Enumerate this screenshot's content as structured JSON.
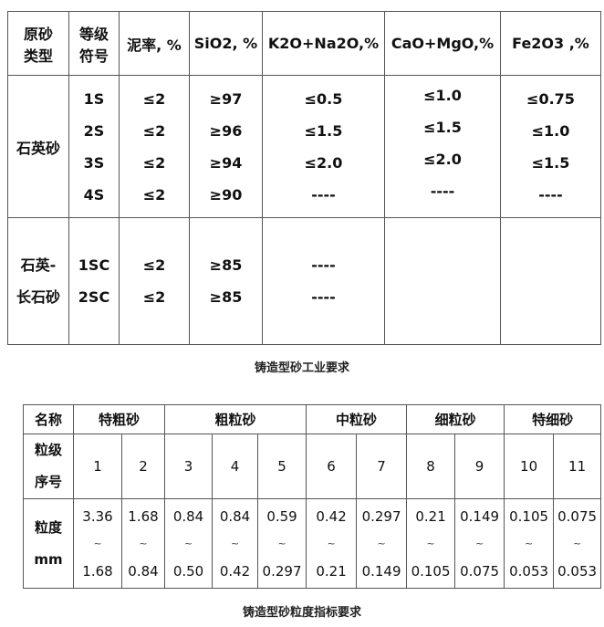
{
  "table1": {
    "headers": [
      "原砂\n类型",
      "等级\n符号",
      "泥率, %",
      "SiO2, %",
      "K2O+Na2O,%",
      "CaO+MgO,%",
      "Fe2O3 ,%"
    ],
    "h0a": "原砂",
    "h0b": "类型",
    "h1a": "等级",
    "h1b": "符号",
    "group1": {
      "type": "石英砂",
      "grades": [
        "1S",
        "2S",
        "3S",
        "4S"
      ],
      "mud": [
        "≤2",
        "≤2",
        "≤2",
        "≤2"
      ],
      "sio2": [
        "≥97",
        "≥96",
        "≥94",
        "≥90"
      ],
      "k2o": [
        "≤0.5",
        "≤1.5",
        "≤2.0",
        "----"
      ],
      "cao": [
        "≤1.0",
        "≤1.5",
        "≤2.0",
        "----"
      ],
      "fe2o3": [
        "≤0.75",
        "≤1.0",
        "≤1.5",
        "----"
      ]
    },
    "group2": {
      "type_a": "石英-",
      "type_b": "长石砂",
      "grades": [
        "1SC",
        "2SC"
      ],
      "mud": [
        "≤2",
        "≤2"
      ],
      "sio2": [
        "≥85",
        "≥85"
      ],
      "k2o": [
        "----",
        "----"
      ]
    },
    "caption": "铸造型砂工业要求"
  },
  "table2": {
    "name_label": "名称",
    "groups": [
      "特粗砂",
      "粗粒砂",
      "中粒砂",
      "细粒砂",
      "特细砂"
    ],
    "grade_label_a": "粒级",
    "grade_label_b": "序号",
    "grades": [
      "1",
      "2",
      "3",
      "4",
      "5",
      "6",
      "7",
      "8",
      "9",
      "10",
      "11"
    ],
    "size_label_a": "粒度",
    "size_label_b": "mm",
    "upper": [
      "3.36",
      "1.68",
      "0.84",
      "0.84",
      "0.59",
      "0.42",
      "0.297",
      "0.21",
      "0.149",
      "0.105",
      "0.075"
    ],
    "tilde": "~",
    "lower": [
      "1.68",
      "0.84",
      "0.50",
      "0.42",
      "0.297",
      "0.21",
      "0.149",
      "0.105",
      "0.075",
      "0.053",
      "0.053"
    ],
    "caption": "铸造型砂粒度指标要求"
  }
}
